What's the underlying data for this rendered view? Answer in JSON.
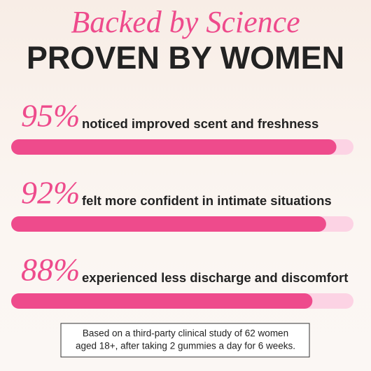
{
  "chart_data": {
    "type": "bar",
    "orientation": "horizontal",
    "title": "Backed by Science",
    "subtitle": "PROVEN BY WOMEN",
    "categories": [
      "noticed improved scent and freshness",
      "felt more confident in intimate situations",
      "experienced less discharge and discomfort"
    ],
    "values": [
      95,
      92,
      88
    ],
    "value_labels": [
      "95%",
      "92%",
      "88%"
    ],
    "xlim": [
      0,
      100
    ],
    "color": "#ee4b8c",
    "track_color": "#fcd3e4",
    "footnote": [
      "Based on a third-party clinical study of 62 women",
      "aged 18+, after taking 2 gummies a day for 6 weeks."
    ]
  }
}
